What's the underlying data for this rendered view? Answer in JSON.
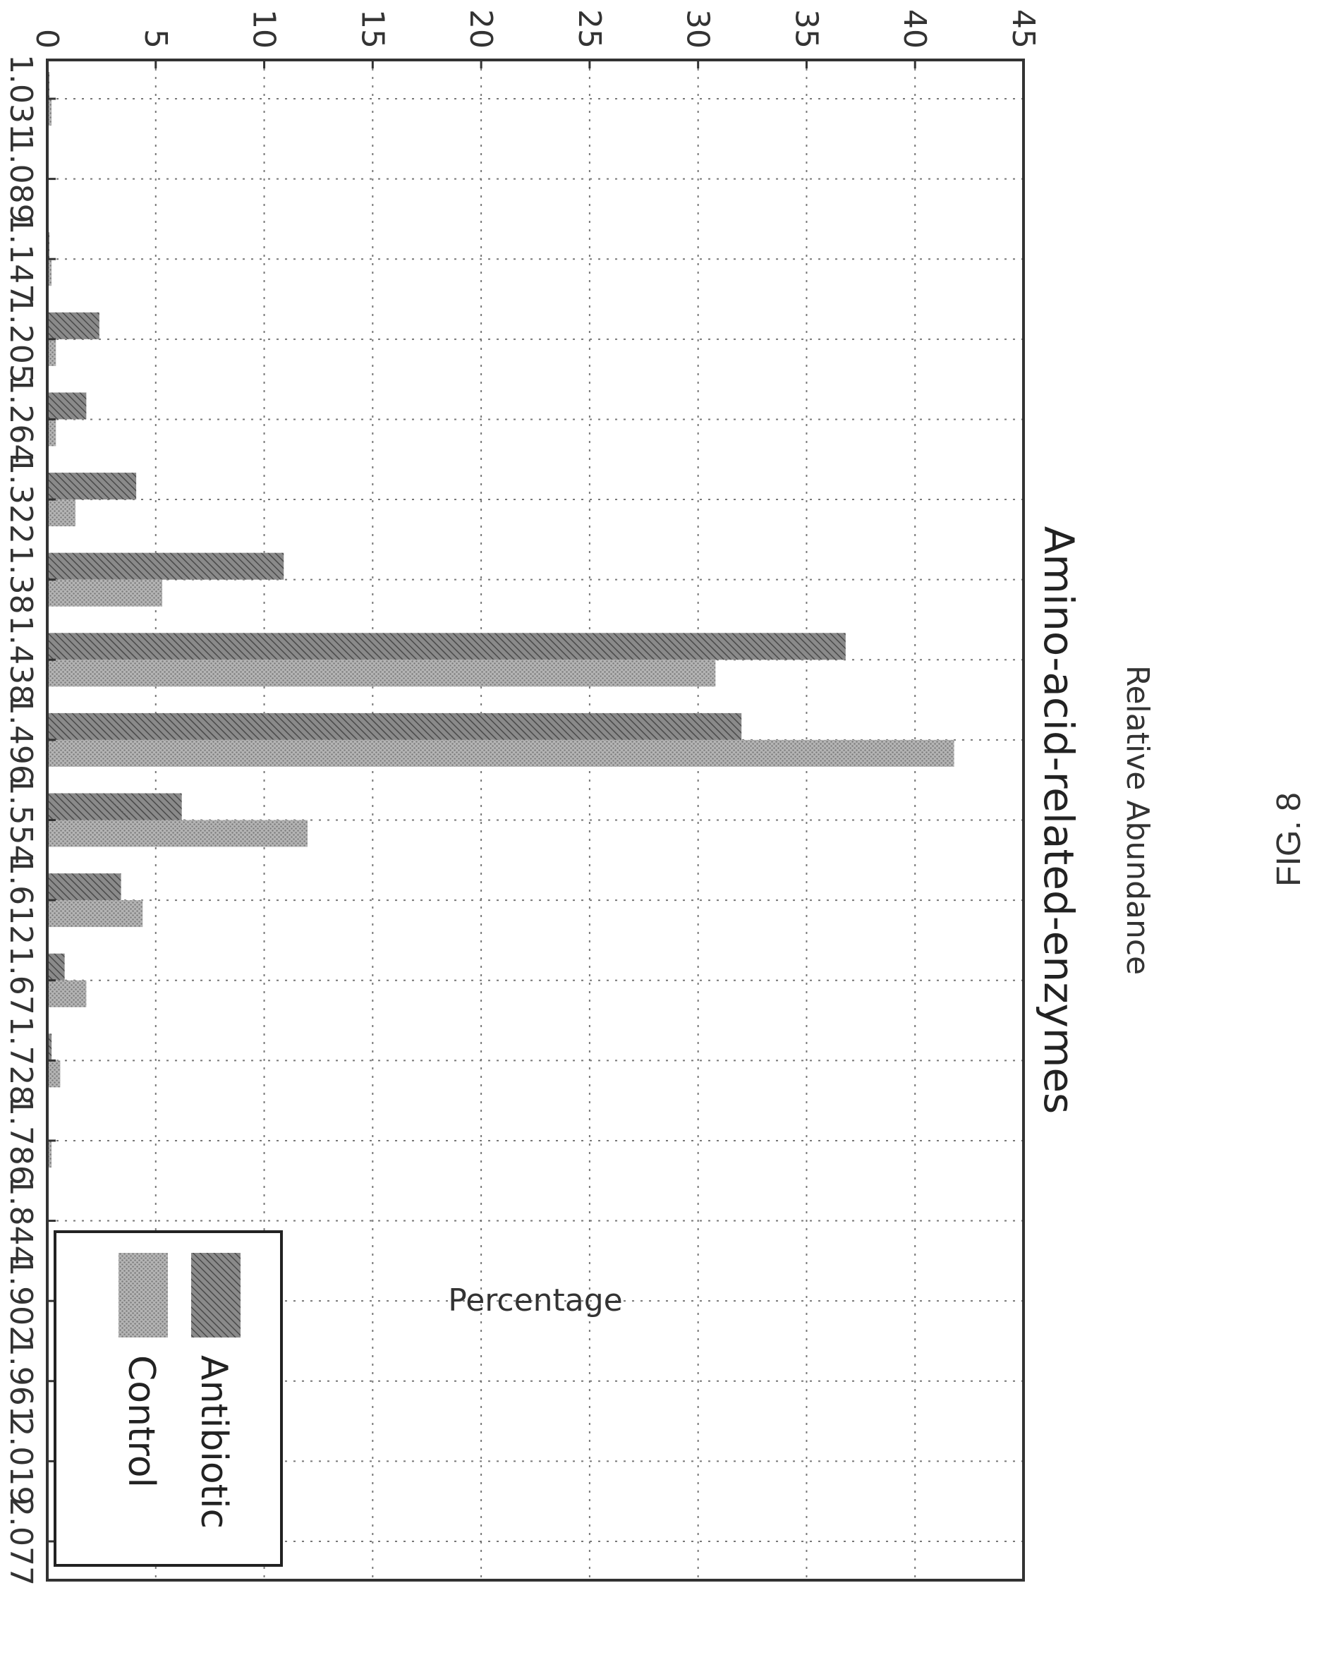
{
  "chart_data": {
    "type": "bar",
    "title": "Amino-acid-related-enzymes",
    "xlabel": "Relative Abundance",
    "ylabel": "Percentage",
    "ylim": [
      0,
      45
    ],
    "yticks": [
      0,
      5,
      10,
      15,
      20,
      25,
      30,
      35,
      40,
      45
    ],
    "grid": true,
    "legend_position": "top-right",
    "orientation": "rotated 90 degrees clockwise",
    "categories": [
      "1.031",
      "1.089",
      "1.147",
      "1.205",
      "1.264",
      "1.322",
      "1.38",
      "1.438",
      "1.496",
      "1.554",
      "1.612",
      "1.67",
      "1.728",
      "1.786",
      "1.844",
      "1.902",
      "1.961",
      "2.019",
      "2.077"
    ],
    "series": [
      {
        "name": "Antibiotic",
        "color": "#6e6e6e",
        "pattern": "diagonal-hatch",
        "values": [
          0.1,
          0,
          0.1,
          2.4,
          1.8,
          4.1,
          10.9,
          36.8,
          32.0,
          6.2,
          3.4,
          0.8,
          0.2,
          0,
          0,
          0,
          0,
          0,
          0
        ]
      },
      {
        "name": "Control",
        "color": "#9c9c9c",
        "pattern": "dotted-fill",
        "values": [
          0.2,
          0,
          0.2,
          0.4,
          0.4,
          1.3,
          5.3,
          30.8,
          41.8,
          12.0,
          4.4,
          1.8,
          0.6,
          0.2,
          0,
          0,
          0,
          0,
          0
        ]
      }
    ]
  },
  "caption": "FIG. 8"
}
